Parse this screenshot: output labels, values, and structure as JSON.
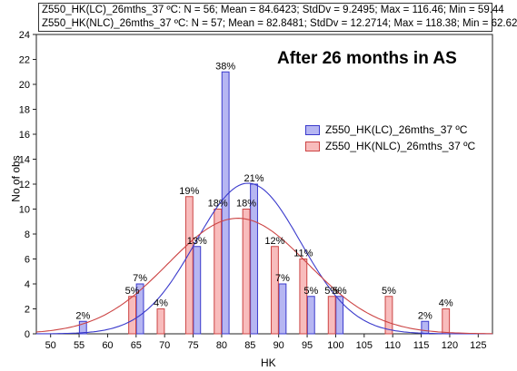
{
  "stats": {
    "line1": "Z550_HK(LC)_26mths_37 ºC: N = 56; Mean = 84.6423; StdDv = 9.2495; Max = 116.46; Min = 59.44",
    "line2": "Z550_HK(NLC)_26mths_37 ºC: N = 57; Mean = 82.8481; StdDv = 12.2714; Max = 118.38; Min = 62.62"
  },
  "headline": "After 26 months in AS",
  "colors": {
    "lc_fill": "#b6b6f2",
    "lc_line": "#3a3acc",
    "nlc_fill": "#f8bcbc",
    "nlc_line": "#cc4444"
  },
  "chart_data": {
    "type": "bar",
    "xlabel": "HK",
    "ylabel": "No of obs",
    "xlim": [
      47.5,
      127.5
    ],
    "ylim": [
      0,
      24
    ],
    "xticks": [
      50,
      55,
      60,
      65,
      70,
      75,
      80,
      85,
      90,
      95,
      100,
      105,
      110,
      115,
      120,
      125
    ],
    "yticks": [
      0,
      2,
      4,
      6,
      8,
      10,
      12,
      14,
      16,
      18,
      20,
      22,
      24
    ],
    "grid": false,
    "legend_position": "right",
    "series": [
      {
        "name": "Z550_HK(LC)_26mths_37 ºC",
        "bins": [
          55,
          60,
          65,
          70,
          75,
          80,
          85,
          90,
          95,
          100,
          105,
          110,
          115,
          120
        ],
        "counts": [
          1,
          0,
          4,
          0,
          7,
          21,
          12,
          4,
          3,
          3,
          0,
          0,
          1,
          0
        ],
        "labels": [
          "2%",
          "",
          "7%",
          "",
          "13%",
          "38%",
          "21%",
          "7%",
          "5%",
          "5%",
          "",
          "",
          "2%",
          ""
        ],
        "fit": {
          "mean": 84.6423,
          "sd": 9.2495,
          "n": 56
        }
      },
      {
        "name": "Z550_HK(NLC)_26mths_37 ºC",
        "bins": [
          55,
          60,
          65,
          70,
          75,
          80,
          85,
          90,
          95,
          100,
          105,
          110,
          115,
          120
        ],
        "counts": [
          0,
          0,
          3,
          2,
          11,
          10,
          10,
          7,
          6,
          3,
          0,
          3,
          0,
          2
        ],
        "labels": [
          "",
          "",
          "5%",
          "4%",
          "19%",
          "18%",
          "18%",
          "12%",
          "11%",
          "5%",
          "",
          "5%",
          "",
          "4%"
        ],
        "fit": {
          "mean": 82.8481,
          "sd": 12.2714,
          "n": 57
        }
      }
    ]
  }
}
